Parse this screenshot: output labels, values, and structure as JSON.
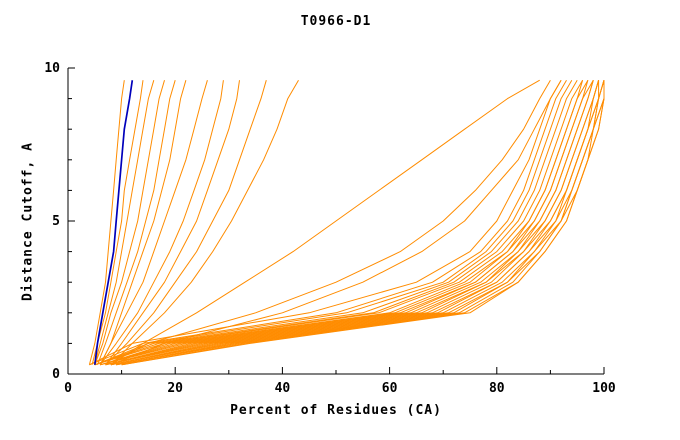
{
  "chart_data": {
    "type": "line",
    "title": "T0966-D1",
    "xlabel": "Percent of Residues (CA)",
    "ylabel": "Distance Cutoff, A",
    "xlim": [
      0,
      100
    ],
    "ylim": [
      0,
      10
    ],
    "grid": false,
    "legend": "none",
    "x_ticks_major": [
      0,
      20,
      40,
      60,
      80,
      100
    ],
    "x_ticks_minor": [
      10,
      30,
      50,
      70,
      90
    ],
    "y_ticks_major": [
      0,
      5,
      10
    ],
    "y_ticks_minor": [
      1,
      2,
      3,
      4,
      6,
      7,
      8,
      9
    ],
    "colors": {
      "model": "#ff8c00",
      "highlight": "#0000bb",
      "axis": "#000000"
    },
    "y_samples": [
      0.3,
      1,
      2,
      3,
      4,
      5,
      6,
      7,
      8,
      9,
      9.6
    ],
    "series": [
      {
        "name": "model-curve",
        "color_key": "model",
        "x": [
          4,
          5,
          6,
          7,
          7.5,
          8,
          8.5,
          9,
          9.5,
          10,
          10.5
        ]
      },
      {
        "name": "model-curve",
        "color_key": "model",
        "x": [
          4.5,
          5.5,
          7,
          8,
          9,
          10,
          10.5,
          11.5,
          12.5,
          13.5,
          14
        ]
      },
      {
        "name": "model-curve",
        "color_key": "model",
        "x": [
          5,
          6,
          7.5,
          9,
          10,
          11,
          12,
          13,
          14,
          15,
          16
        ]
      },
      {
        "name": "model-curve",
        "color_key": "model",
        "x": [
          5,
          6.5,
          8,
          10,
          11.5,
          13,
          14,
          15,
          16,
          17,
          18
        ]
      },
      {
        "name": "model-curve",
        "color_key": "model",
        "x": [
          5.5,
          7,
          9,
          11,
          13,
          14.5,
          16,
          17,
          18,
          19,
          20
        ]
      },
      {
        "name": "model-curve",
        "color_key": "model",
        "x": [
          6,
          8,
          10,
          12,
          14,
          16,
          17.5,
          19,
          20,
          21,
          22
        ]
      },
      {
        "name": "model-curve",
        "color_key": "model",
        "x": [
          6,
          8,
          11,
          14,
          16,
          18,
          20,
          22,
          23.5,
          25,
          26
        ]
      },
      {
        "name": "model-curve",
        "color_key": "model",
        "x": [
          6,
          9,
          13,
          16,
          19,
          21.5,
          23.5,
          25.5,
          27,
          28.5,
          29
        ]
      },
      {
        "name": "model-curve",
        "color_key": "model",
        "x": [
          7,
          10,
          14,
          18,
          21,
          24,
          26,
          28,
          30,
          31.5,
          32
        ]
      },
      {
        "name": "model-curve",
        "color_key": "model",
        "x": [
          7,
          11,
          16,
          20,
          24,
          27,
          30,
          32,
          34,
          36,
          37
        ]
      },
      {
        "name": "model-curve",
        "color_key": "model",
        "x": [
          8,
          12,
          18,
          23,
          27,
          30.5,
          33.5,
          36.5,
          39,
          41,
          43
        ]
      },
      {
        "name": "model-curve",
        "color_key": "model",
        "x": [
          8,
          14,
          24,
          33,
          42,
          50,
          58,
          66,
          74,
          82,
          88
        ]
      },
      {
        "name": "model-curve",
        "color_key": "model",
        "x": [
          7,
          15,
          35,
          50,
          62,
          70,
          76,
          81,
          85,
          88,
          90
        ]
      },
      {
        "name": "model-curve",
        "color_key": "model",
        "x": [
          8,
          18,
          40,
          55,
          66,
          74,
          79,
          84,
          87,
          90,
          92
        ]
      },
      {
        "name": "model-curve",
        "color_key": "model",
        "x": [
          4,
          12,
          45,
          65,
          75,
          80,
          83,
          86,
          88,
          90,
          92
        ]
      },
      {
        "name": "model-curve",
        "color_key": "model",
        "x": [
          4,
          14,
          50,
          68,
          77,
          82,
          85,
          87,
          89,
          91,
          93
        ]
      },
      {
        "name": "model-curve",
        "color_key": "model",
        "x": [
          5,
          15,
          52,
          70,
          78,
          83,
          86,
          88,
          90,
          92,
          94
        ]
      },
      {
        "name": "model-curve",
        "color_key": "model",
        "x": [
          5,
          16,
          55,
          71,
          79,
          84,
          87,
          89,
          91,
          93,
          95
        ]
      },
      {
        "name": "model-curve",
        "color_key": "model",
        "x": [
          5,
          17,
          57,
          72,
          80,
          85,
          88,
          90,
          92,
          94,
          96
        ]
      },
      {
        "name": "model-curve",
        "color_key": "model",
        "x": [
          5,
          18,
          58,
          73,
          81,
          86,
          89,
          91,
          93,
          95,
          96
        ]
      },
      {
        "name": "model-curve",
        "color_key": "model",
        "x": [
          6,
          19,
          60,
          74,
          82,
          86,
          89,
          91,
          93,
          95,
          97
        ]
      },
      {
        "name": "model-curve",
        "color_key": "model",
        "x": [
          6,
          20,
          61,
          75,
          82,
          87,
          90,
          92,
          94,
          96,
          97
        ]
      },
      {
        "name": "model-curve",
        "color_key": "model",
        "x": [
          6,
          21,
          62,
          76,
          83,
          87,
          90,
          92,
          94,
          96,
          98
        ]
      },
      {
        "name": "model-curve",
        "color_key": "model",
        "x": [
          6,
          22,
          63,
          76,
          83,
          88,
          91,
          93,
          95,
          97,
          98
        ]
      },
      {
        "name": "model-curve",
        "color_key": "model",
        "x": [
          7,
          23,
          64,
          77,
          84,
          88,
          91,
          93,
          95,
          97,
          98
        ]
      },
      {
        "name": "model-curve",
        "color_key": "model",
        "x": [
          7,
          24,
          65,
          78,
          84,
          89,
          92,
          94,
          96,
          98,
          99
        ]
      },
      {
        "name": "model-curve",
        "color_key": "model",
        "x": [
          7,
          25,
          66,
          78,
          85,
          89,
          92,
          94,
          96,
          98,
          99
        ]
      },
      {
        "name": "model-curve",
        "color_key": "model",
        "x": [
          7,
          26,
          67,
          79,
          85,
          90,
          93,
          95,
          97,
          98,
          99
        ]
      },
      {
        "name": "model-curve",
        "color_key": "model",
        "x": [
          8,
          27,
          68,
          80,
          86,
          90,
          93,
          95,
          97,
          99,
          99
        ]
      },
      {
        "name": "model-curve",
        "color_key": "model",
        "x": [
          8,
          28,
          69,
          80,
          86,
          91,
          93,
          95,
          97,
          99,
          100
        ]
      },
      {
        "name": "model-curve",
        "color_key": "model",
        "x": [
          8,
          29,
          70,
          81,
          87,
          91,
          94,
          96,
          98,
          99,
          100
        ]
      },
      {
        "name": "model-curve",
        "color_key": "model",
        "x": [
          9,
          30,
          71,
          82,
          87,
          92,
          94,
          96,
          98,
          99,
          100
        ]
      },
      {
        "name": "model-curve",
        "color_key": "model",
        "x": [
          9,
          31,
          72,
          82,
          88,
          92,
          94,
          96,
          98,
          100,
          100
        ]
      },
      {
        "name": "model-curve",
        "color_key": "model",
        "x": [
          9,
          32,
          73,
          83,
          88,
          92,
          95,
          97,
          98,
          100,
          100
        ]
      },
      {
        "name": "model-curve",
        "color_key": "model",
        "x": [
          10,
          33,
          74,
          84,
          89,
          93,
          95,
          97,
          99,
          100,
          100
        ]
      },
      {
        "name": "model-curve",
        "color_key": "model",
        "x": [
          10,
          34,
          75,
          84,
          89,
          93,
          95,
          97,
          99,
          100,
          100
        ]
      },
      {
        "name": "highlighted-model-curve",
        "color_key": "highlight",
        "x": [
          5,
          5.5,
          6.5,
          7.5,
          8.5,
          9,
          9.5,
          10,
          10.5,
          11.5,
          12
        ]
      }
    ]
  }
}
